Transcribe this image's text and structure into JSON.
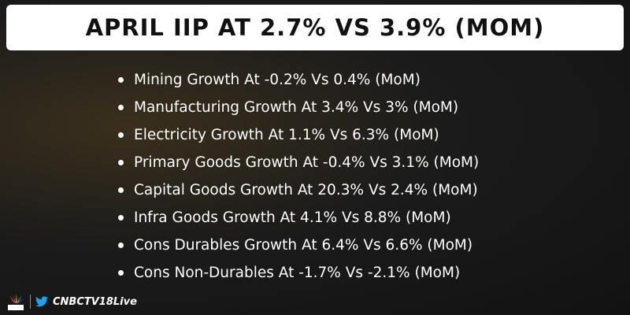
{
  "header": {
    "title": "APRIL IIP AT 2.7% VS 3.9% (MOM)"
  },
  "bullets": [
    "Mining Growth At -0.2% Vs 0.4% (MoM)",
    "Manufacturing Growth At 3.4% Vs 3% (MoM)",
    "Electricity Growth At 1.1% Vs 6.3% (MoM)",
    "Primary Goods Growth At -0.4% Vs 3.1% (MoM)",
    "Capital Goods Growth At 20.3% Vs 2.4% (MoM)",
    "Infra Goods Growth At 4.1% Vs 8.8% (MoM)",
    "Cons Durables Growth At 6.4% Vs 6.6% (MoM)",
    "Cons Non-Durables At -1.7% Vs -2.1% (MoM)"
  ],
  "footer": {
    "handle": "CNBCTV18Live"
  }
}
